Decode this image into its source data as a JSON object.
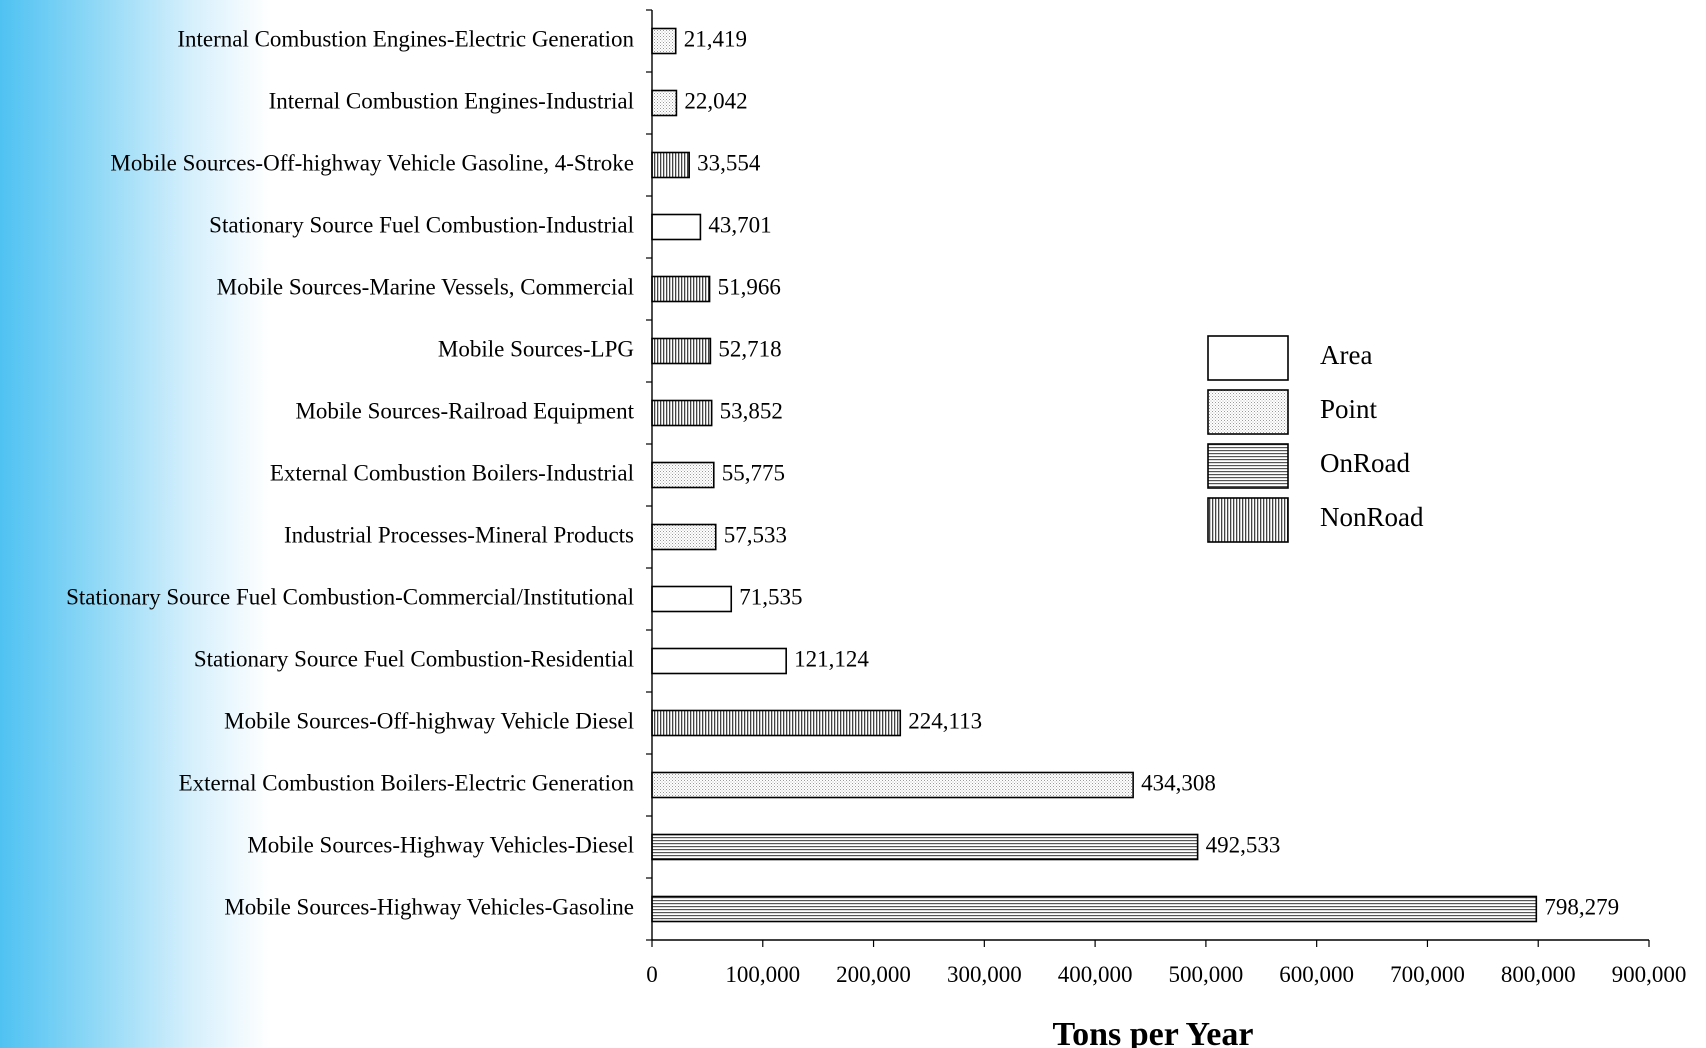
{
  "chart_data": {
    "type": "bar",
    "orientation": "horizontal",
    "xlabel": "Tons per Year",
    "xlim": [
      0,
      900000
    ],
    "x_ticks": [
      0,
      100000,
      200000,
      300000,
      400000,
      500000,
      600000,
      700000,
      800000,
      900000
    ],
    "x_tick_labels": [
      "0",
      "100,000",
      "200,000",
      "300,000",
      "400,000",
      "500,000",
      "600,000",
      "700,000",
      "800,000",
      "900,000"
    ],
    "grid": false,
    "legend_position": "right",
    "legend": [
      {
        "name": "Area",
        "pattern": "solid-white"
      },
      {
        "name": "Point",
        "pattern": "dotted"
      },
      {
        "name": "OnRoad",
        "pattern": "horizontal-lines"
      },
      {
        "name": "NonRoad",
        "pattern": "vertical-lines"
      }
    ],
    "bars": [
      {
        "category": "Internal Combustion Engines-Electric Generation",
        "value": 21419,
        "value_label": "21,419",
        "type": "Point"
      },
      {
        "category": "Internal Combustion Engines-Industrial",
        "value": 22042,
        "value_label": "22,042",
        "type": "Point"
      },
      {
        "category": "Mobile Sources-Off-highway Vehicle Gasoline, 4-Stroke",
        "value": 33554,
        "value_label": "33,554",
        "type": "NonRoad"
      },
      {
        "category": "Stationary Source Fuel Combustion-Industrial",
        "value": 43701,
        "value_label": "43,701",
        "type": "Area"
      },
      {
        "category": "Mobile Sources-Marine Vessels, Commercial",
        "value": 51966,
        "value_label": "51,966",
        "type": "NonRoad"
      },
      {
        "category": "Mobile Sources-LPG",
        "value": 52718,
        "value_label": "52,718",
        "type": "NonRoad"
      },
      {
        "category": "Mobile Sources-Railroad Equipment",
        "value": 53852,
        "value_label": "53,852",
        "type": "NonRoad"
      },
      {
        "category": "External Combustion Boilers-Industrial",
        "value": 55775,
        "value_label": "55,775",
        "type": "Point"
      },
      {
        "category": "Industrial Processes-Mineral Products",
        "value": 57533,
        "value_label": "57,533",
        "type": "Point"
      },
      {
        "category": "Stationary Source Fuel Combustion-Commercial/Institutional",
        "value": 71535,
        "value_label": "71,535",
        "type": "Area"
      },
      {
        "category": "Stationary Source Fuel Combustion-Residential",
        "value": 121124,
        "value_label": "121,124",
        "type": "Area"
      },
      {
        "category": "Mobile Sources-Off-highway Vehicle Diesel",
        "value": 224113,
        "value_label": "224,113",
        "type": "NonRoad"
      },
      {
        "category": "External Combustion Boilers-Electric Generation",
        "value": 434308,
        "value_label": "434,308",
        "type": "Point"
      },
      {
        "category": "Mobile Sources-Highway Vehicles-Diesel",
        "value": 492533,
        "value_label": "492,533",
        "type": "OnRoad"
      },
      {
        "category": "Mobile Sources-Highway Vehicles-Gasoline",
        "value": 798279,
        "value_label": "798,279",
        "type": "OnRoad"
      }
    ]
  }
}
